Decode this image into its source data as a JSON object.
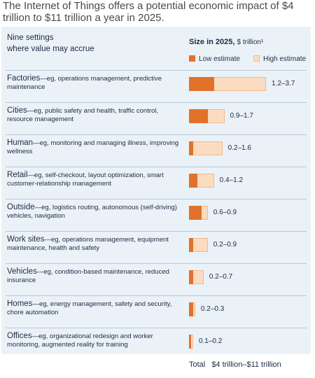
{
  "title": "The Internet of Things offers a potential economic impact of $4 trillion to $11 trillion a year in 2025.",
  "header": {
    "left_line1": "Nine settings",
    "left_line2": "where value may accrue",
    "right_title": "Size in 2025,",
    "right_unit": "$ trillion¹"
  },
  "legend": {
    "low_label": "Low estimate",
    "high_label": "High estimate",
    "low_color": "#e2712a",
    "high_color": "#fbdcc0"
  },
  "chart_data": {
    "type": "bar",
    "orientation": "horizontal",
    "unit": "$ trillion",
    "xlim": [
      0,
      3.7
    ],
    "categories": [
      "Factories",
      "Cities",
      "Human",
      "Retail",
      "Outside",
      "Work sites",
      "Vehicles",
      "Homes",
      "Offices"
    ],
    "descriptions": [
      "eg, operations management, predictive maintenance",
      "eg, public safety and health, traffic control, resource management",
      "eg, monitoring and managing illness, improving wellness",
      "eg, self-checkout, layout optimization, smart customer-relationship management",
      "eg, logistics routing, autonomous (self-driving) vehicles, navigation",
      "eg, operations management, equipment maintenance, health and safety",
      "eg, condition-based maintenance, reduced insurance",
      "eg, energy management, safety and security, chore automation",
      "eg, organizational redesign and worker monitoring, augmented reality for training"
    ],
    "series": [
      {
        "name": "Low estimate",
        "values": [
          1.2,
          0.9,
          0.2,
          0.4,
          0.6,
          0.2,
          0.2,
          0.2,
          0.1
        ]
      },
      {
        "name": "High estimate",
        "values": [
          3.7,
          1.7,
          1.6,
          1.2,
          0.9,
          0.9,
          0.7,
          0.3,
          0.2
        ]
      }
    ],
    "range_labels": [
      "1.2–3.7",
      "0.9–1.7",
      "0.2–1.6",
      "0.4–1.2",
      "0.6–0.9",
      "0.2–0.9",
      "0.2–0.7",
      "0.2–0.3",
      "0.1–0.2"
    ],
    "total_label": "Total",
    "total_value": "$4 trillion–$11 trillion"
  }
}
